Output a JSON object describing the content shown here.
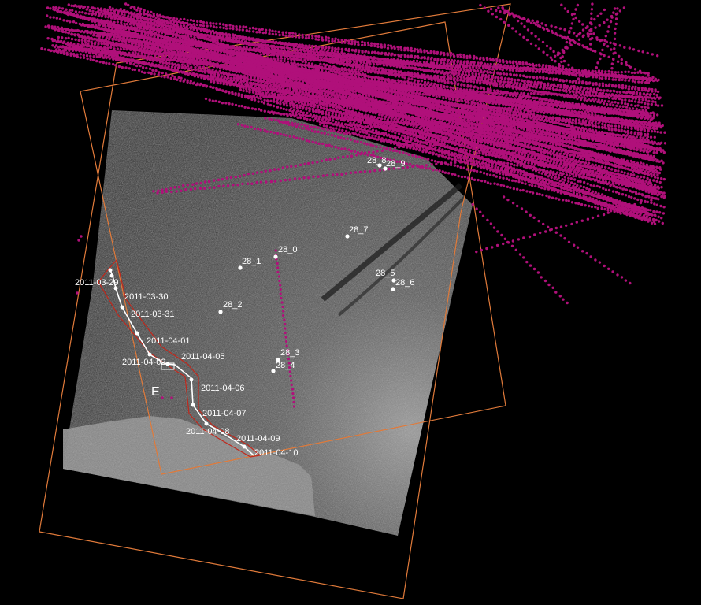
{
  "colors": {
    "background": "#000000",
    "ais_points": "#b0107a",
    "footprint_outline": "#e07a3a",
    "track": "#ffffff",
    "track_envelope": "#c0281c",
    "sar_image": "#4a4a4a"
  },
  "track_labels": [
    "2011-03-29",
    "2011-03-30",
    "2011-03-31",
    "2011-04-01",
    "2011-04-02",
    "2011-04-05",
    "2011-04-06",
    "2011-04-07",
    "2011-04-08",
    "2011-04-09",
    "2011-04-10"
  ],
  "targets": [
    "28_0",
    "28_1",
    "28_2",
    "28_3",
    "28_4",
    "28_5",
    "28_6",
    "28_7",
    "28_8",
    "28_9"
  ],
  "region_label": "E"
}
